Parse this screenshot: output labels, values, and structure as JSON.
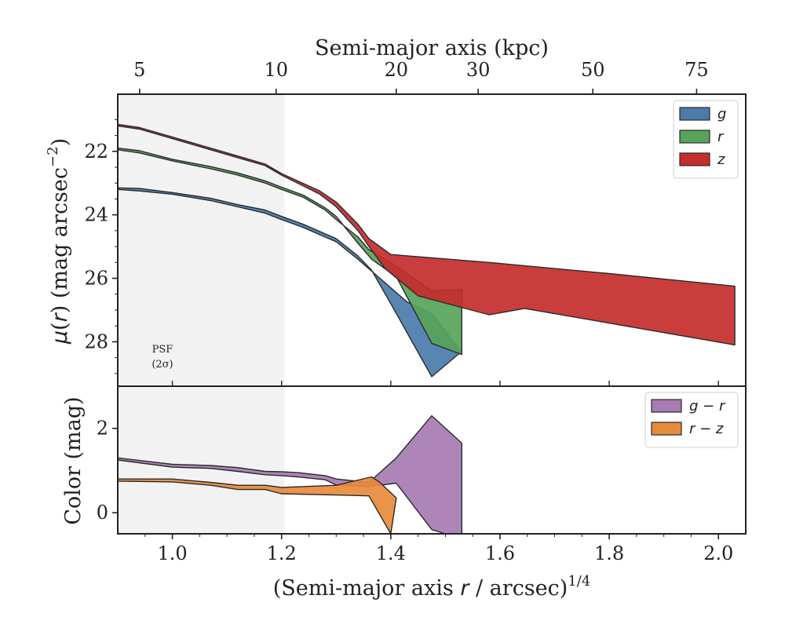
{
  "chart_data": [
    {
      "type": "area",
      "panel": "surface-brightness",
      "ylabel": "μ(r) (mag arcsec⁻²)",
      "top_xlabel": "Semi-major axis (kpc)",
      "top_ticks": [
        {
          "label": "5",
          "x": 0.94
        },
        {
          "label": "10",
          "x": 1.19
        },
        {
          "label": "20",
          "x": 1.41
        },
        {
          "label": "30",
          "x": 1.56
        },
        {
          "label": "50",
          "x": 1.77
        },
        {
          "label": "75",
          "x": 1.96
        }
      ],
      "xlim": [
        0.9,
        2.05
      ],
      "ylim": [
        29.4,
        20.2
      ],
      "yticks": [
        22,
        24,
        26,
        28
      ],
      "yticklabels": [
        "22",
        "24",
        "26",
        "28"
      ],
      "shaded_region_x": [
        0.9,
        1.205
      ],
      "psf_annotation": [
        "PSF",
        "(2σ)"
      ],
      "legend_position": "top-right",
      "series": [
        {
          "name": "g",
          "color": "#4a7bab",
          "upper": [
            [
              0.9,
              23.2
            ],
            [
              0.94,
              23.25
            ],
            [
              1.0,
              23.35
            ],
            [
              1.07,
              23.55
            ],
            [
              1.12,
              23.75
            ],
            [
              1.17,
              23.95
            ],
            [
              1.2,
              24.15
            ],
            [
              1.24,
              24.4
            ],
            [
              1.28,
              24.7
            ],
            [
              1.3,
              24.85
            ],
            [
              1.34,
              25.4
            ],
            [
              1.38,
              26.0
            ],
            [
              1.43,
              26.75
            ],
            [
              1.475,
              27.1
            ],
            [
              1.53,
              28.35
            ]
          ],
          "lower": [
            [
              0.9,
              23.15
            ],
            [
              0.94,
              23.17
            ],
            [
              1.0,
              23.3
            ],
            [
              1.07,
              23.48
            ],
            [
              1.12,
              23.68
            ],
            [
              1.17,
              23.85
            ],
            [
              1.2,
              24.05
            ],
            [
              1.24,
              24.3
            ],
            [
              1.28,
              24.6
            ],
            [
              1.3,
              24.75
            ],
            [
              1.34,
              25.3
            ],
            [
              1.365,
              25.75
            ],
            [
              1.4,
              26.8
            ],
            [
              1.475,
              29.1
            ],
            [
              1.53,
              28.3
            ]
          ]
        },
        {
          "name": "r",
          "color": "#58a35a",
          "upper": [
            [
              0.9,
              21.95
            ],
            [
              0.94,
              22.05
            ],
            [
              1.0,
              22.3
            ],
            [
              1.07,
              22.55
            ],
            [
              1.12,
              22.75
            ],
            [
              1.17,
              23.0
            ],
            [
              1.2,
              23.2
            ],
            [
              1.24,
              23.45
            ],
            [
              1.28,
              23.85
            ],
            [
              1.3,
              24.15
            ],
            [
              1.34,
              24.7
            ],
            [
              1.36,
              25.1
            ],
            [
              1.4,
              25.5
            ],
            [
              1.475,
              26.4
            ],
            [
              1.53,
              26.35
            ]
          ],
          "lower": [
            [
              0.9,
              21.9
            ],
            [
              0.94,
              21.98
            ],
            [
              1.0,
              22.25
            ],
            [
              1.07,
              22.48
            ],
            [
              1.12,
              22.68
            ],
            [
              1.17,
              22.93
            ],
            [
              1.2,
              23.13
            ],
            [
              1.24,
              23.38
            ],
            [
              1.28,
              23.78
            ],
            [
              1.3,
              24.05
            ],
            [
              1.34,
              24.9
            ],
            [
              1.365,
              25.4
            ],
            [
              1.41,
              25.95
            ],
            [
              1.475,
              28.05
            ],
            [
              1.53,
              28.4
            ]
          ]
        },
        {
          "name": "z",
          "color": "#c62d2d",
          "upper": [
            [
              0.9,
              21.15
            ],
            [
              0.94,
              21.25
            ],
            [
              1.0,
              21.55
            ],
            [
              1.07,
              21.9
            ],
            [
              1.12,
              22.15
            ],
            [
              1.17,
              22.4
            ],
            [
              1.2,
              22.7
            ],
            [
              1.27,
              23.25
            ],
            [
              1.3,
              23.6
            ],
            [
              1.34,
              24.3
            ],
            [
              1.36,
              24.75
            ],
            [
              1.4,
              25.25
            ],
            [
              1.58,
              25.5
            ],
            [
              1.8,
              25.85
            ],
            [
              2.03,
              26.25
            ]
          ],
          "lower": [
            [
              0.9,
              21.2
            ],
            [
              0.94,
              21.3
            ],
            [
              1.0,
              21.6
            ],
            [
              1.07,
              21.95
            ],
            [
              1.12,
              22.2
            ],
            [
              1.17,
              22.45
            ],
            [
              1.2,
              22.75
            ],
            [
              1.27,
              23.35
            ],
            [
              1.3,
              23.75
            ],
            [
              1.34,
              24.5
            ],
            [
              1.36,
              25.0
            ],
            [
              1.39,
              25.7
            ],
            [
              1.45,
              26.55
            ],
            [
              1.58,
              27.15
            ],
            [
              1.645,
              26.95
            ],
            [
              2.03,
              28.1
            ]
          ]
        }
      ]
    },
    {
      "type": "area",
      "panel": "color",
      "ylabel": "Color (mag)",
      "xlabel": "(Semi-major axis r / arcsec)^1/4",
      "xlabel_main": "(Semi-major axis ",
      "xlabel_var": "r",
      "xlabel_tail": " / arcsec)",
      "xlabel_sup": "1/4",
      "xlim": [
        0.9,
        2.05
      ],
      "xticks": [
        1.0,
        1.2,
        1.4,
        1.6,
        1.8,
        2.0
      ],
      "xticklabels": [
        "1.0",
        "1.2",
        "1.4",
        "1.6",
        "1.8",
        "2.0"
      ],
      "ylim": [
        -0.5,
        3.0
      ],
      "yticks": [
        0,
        2
      ],
      "yticklabels": [
        "0",
        "2"
      ],
      "shaded_region_x": [
        0.9,
        1.205
      ],
      "legend_position": "top-right",
      "series": [
        {
          "name": "g − r",
          "color": "#a77bb3",
          "upper": [
            [
              0.9,
              1.3
            ],
            [
              1.0,
              1.15
            ],
            [
              1.07,
              1.12
            ],
            [
              1.12,
              1.07
            ],
            [
              1.17,
              0.98
            ],
            [
              1.2,
              0.97
            ],
            [
              1.23,
              0.95
            ],
            [
              1.28,
              0.88
            ],
            [
              1.3,
              0.8
            ],
            [
              1.36,
              0.72
            ],
            [
              1.41,
              1.3
            ],
            [
              1.475,
              2.3
            ],
            [
              1.53,
              1.65
            ]
          ],
          "lower": [
            [
              0.9,
              1.25
            ],
            [
              1.0,
              1.08
            ],
            [
              1.07,
              1.05
            ],
            [
              1.12,
              0.98
            ],
            [
              1.17,
              0.9
            ],
            [
              1.2,
              0.88
            ],
            [
              1.23,
              0.85
            ],
            [
              1.28,
              0.78
            ],
            [
              1.3,
              0.66
            ],
            [
              1.36,
              0.62
            ],
            [
              1.41,
              0.7
            ],
            [
              1.475,
              -0.4
            ],
            [
              1.5,
              -0.5
            ],
            [
              1.53,
              -0.5
            ]
          ]
        },
        {
          "name": "r − z",
          "color": "#e78a3c",
          "upper": [
            [
              0.9,
              0.8
            ],
            [
              1.0,
              0.8
            ],
            [
              1.07,
              0.72
            ],
            [
              1.12,
              0.65
            ],
            [
              1.17,
              0.65
            ],
            [
              1.2,
              0.6
            ],
            [
              1.3,
              0.65
            ],
            [
              1.365,
              0.85
            ],
            [
              1.38,
              0.72
            ],
            [
              1.41,
              0.35
            ]
          ],
          "lower": [
            [
              0.9,
              0.75
            ],
            [
              1.0,
              0.73
            ],
            [
              1.07,
              0.65
            ],
            [
              1.12,
              0.55
            ],
            [
              1.17,
              0.55
            ],
            [
              1.2,
              0.45
            ],
            [
              1.3,
              0.42
            ],
            [
              1.36,
              0.4
            ],
            [
              1.4,
              -0.5
            ]
          ]
        }
      ]
    }
  ]
}
